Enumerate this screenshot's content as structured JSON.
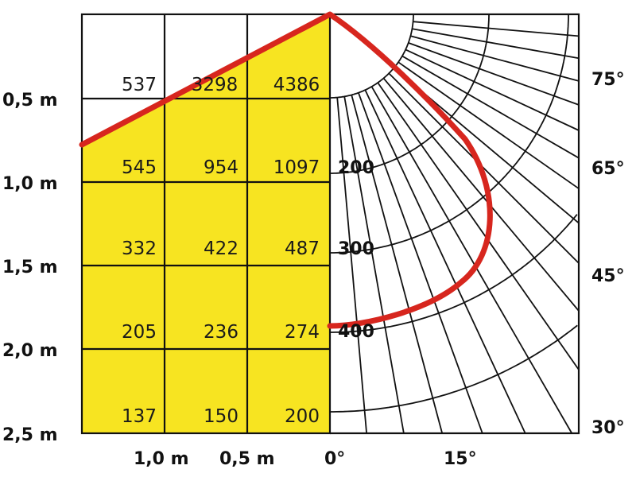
{
  "colors": {
    "highlight": "#f7e421",
    "curve": "#d7261e",
    "grid": "#111111",
    "background": "#ffffff"
  },
  "row_labels": [
    "0,5 m",
    "1,0 m",
    "1,5 m",
    "2,0 m",
    "2,5 m"
  ],
  "column_labels": [
    "1,0 m",
    "0,5 m",
    "0°"
  ],
  "angle_labels": [
    "75°",
    "65°",
    "45°",
    "30°",
    "15°"
  ],
  "intensity_labels": [
    "200",
    "300",
    "400"
  ],
  "grid_values": [
    [
      "537",
      "3298",
      "4386"
    ],
    [
      "545",
      "954",
      "1097"
    ],
    [
      "332",
      "422",
      "487"
    ],
    [
      "205",
      "236",
      "274"
    ],
    [
      "137",
      "150",
      "200"
    ]
  ]
}
